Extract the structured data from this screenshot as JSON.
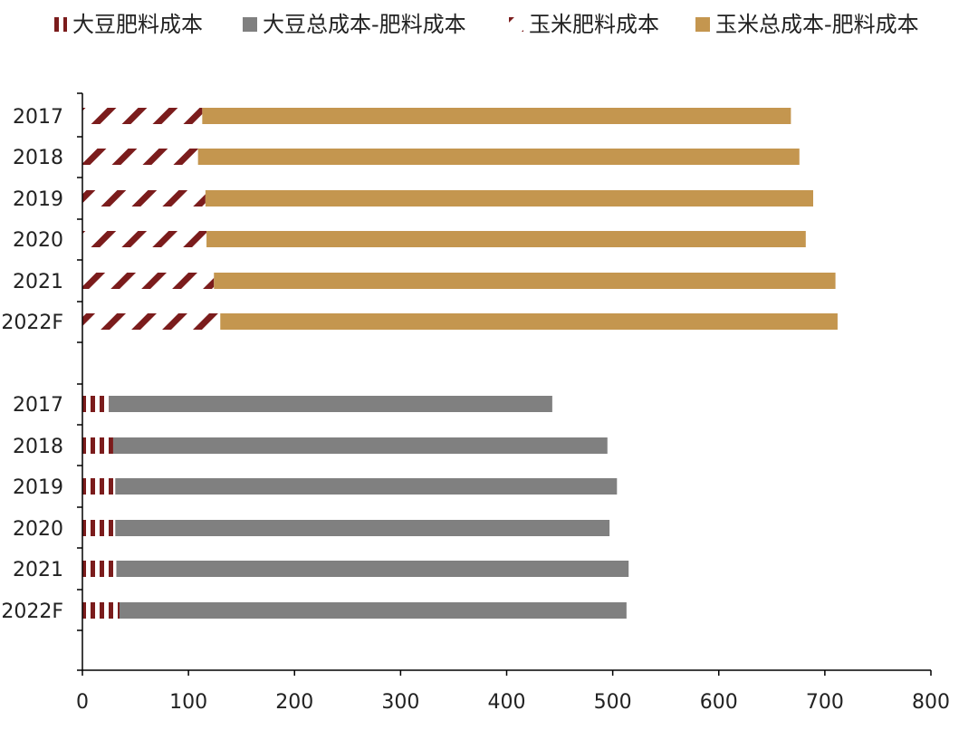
{
  "chart_data": {
    "type": "bar",
    "orientation": "horizontal",
    "stacked": true,
    "categories": [
      "2017",
      "2018",
      "2019",
      "2020",
      "2021",
      "2022F",
      "2017",
      "2018",
      "2019",
      "2020",
      "2021",
      "2022F"
    ],
    "groups": [
      "玉米",
      "玉米",
      "玉米",
      "玉米",
      "玉米",
      "玉米",
      "大豆",
      "大豆",
      "大豆",
      "大豆",
      "大豆",
      "大豆"
    ],
    "series": [
      {
        "name": "大豆肥料成本",
        "values": [
          null,
          null,
          null,
          null,
          null,
          null,
          25,
          29,
          31,
          31,
          32,
          35
        ],
        "color": "#7B1C1C",
        "pattern": "vertical-stripes"
      },
      {
        "name": "大豆总成本-肥料成本",
        "values": [
          null,
          null,
          null,
          null,
          null,
          null,
          418,
          466,
          473,
          466,
          483,
          478
        ],
        "color": "#808080",
        "pattern": "solid"
      },
      {
        "name": "玉米肥料成本",
        "values": [
          113,
          109,
          116,
          117,
          124,
          130,
          null,
          null,
          null,
          null,
          null,
          null
        ],
        "color": "#7B1C1C",
        "pattern": "diagonal-stripes"
      },
      {
        "name": "玉米总成本-肥料成本",
        "values": [
          555,
          567,
          573,
          565,
          586,
          582,
          null,
          null,
          null,
          null,
          null,
          null
        ],
        "color": "#C4964F",
        "pattern": "solid"
      }
    ],
    "x_ticks": [
      "0",
      "100",
      "200",
      "300",
      "400",
      "500",
      "600",
      "700",
      "800"
    ],
    "xlim": [
      0,
      800
    ],
    "legend_position": "top",
    "grid": false,
    "title": "",
    "xlabel": "",
    "ylabel": ""
  }
}
